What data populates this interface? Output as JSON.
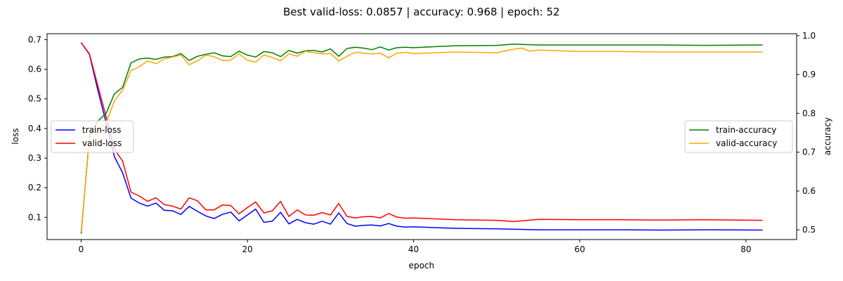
{
  "chart_data": {
    "type": "line",
    "title": "Best valid-loss: 0.0857 | accuracy: 0.968 | epoch: 52",
    "xlabel": "epoch",
    "ylabel_left": "loss",
    "ylabel_right": "accuracy",
    "xlim": [
      -4.1,
      86.1
    ],
    "ylim_left": [
      0.025,
      0.72
    ],
    "ylim_right": [
      0.475,
      1.005
    ],
    "xticks": [
      0,
      20,
      40,
      60,
      80
    ],
    "yticks_left": [
      0.1,
      0.2,
      0.3,
      0.4,
      0.5,
      0.6,
      0.7
    ],
    "yticks_right": [
      0.5,
      0.6,
      0.7,
      0.8,
      0.9,
      1.0
    ],
    "grid": false,
    "legend_left": "center-left",
    "legend_right": "center-right",
    "series": [
      {
        "name": "train-loss",
        "axis": "left",
        "color": "#0000ff",
        "x": [
          0,
          1,
          2,
          3,
          4,
          5,
          6,
          7,
          8,
          9,
          10,
          11,
          12,
          13,
          14,
          15,
          16,
          17,
          18,
          19,
          20,
          21,
          22,
          23,
          24,
          25,
          26,
          27,
          28,
          29,
          30,
          31,
          32,
          33,
          34,
          35,
          36,
          37,
          38,
          39,
          40,
          45,
          50,
          55,
          60,
          65,
          70,
          75,
          82
        ],
        "values": [
          0.69,
          0.65,
          0.53,
          0.42,
          0.305,
          0.25,
          0.165,
          0.148,
          0.138,
          0.148,
          0.124,
          0.122,
          0.11,
          0.137,
          0.12,
          0.105,
          0.096,
          0.11,
          0.118,
          0.088,
          0.108,
          0.128,
          0.083,
          0.087,
          0.117,
          0.078,
          0.093,
          0.082,
          0.077,
          0.087,
          0.077,
          0.115,
          0.079,
          0.07,
          0.073,
          0.074,
          0.071,
          0.079,
          0.07,
          0.067,
          0.068,
          0.063,
          0.061,
          0.058,
          0.058,
          0.058,
          0.057,
          0.058,
          0.057
        ]
      },
      {
        "name": "valid-loss",
        "axis": "left",
        "color": "#ff0000",
        "x": [
          0,
          1,
          2,
          3,
          4,
          5,
          6,
          7,
          8,
          9,
          10,
          11,
          12,
          13,
          14,
          15,
          16,
          17,
          18,
          19,
          20,
          21,
          22,
          23,
          24,
          25,
          26,
          27,
          28,
          29,
          30,
          31,
          32,
          33,
          34,
          35,
          36,
          37,
          38,
          39,
          40,
          45,
          50,
          52,
          55,
          60,
          65,
          70,
          75,
          82
        ],
        "values": [
          0.69,
          0.652,
          0.545,
          0.44,
          0.33,
          0.29,
          0.185,
          0.172,
          0.154,
          0.166,
          0.143,
          0.138,
          0.128,
          0.166,
          0.156,
          0.125,
          0.125,
          0.142,
          0.14,
          0.112,
          0.133,
          0.152,
          0.115,
          0.122,
          0.154,
          0.103,
          0.125,
          0.108,
          0.107,
          0.116,
          0.108,
          0.147,
          0.103,
          0.098,
          0.102,
          0.103,
          0.098,
          0.113,
          0.101,
          0.097,
          0.098,
          0.092,
          0.09,
          0.0857,
          0.093,
          0.092,
          0.092,
          0.091,
          0.092,
          0.09
        ]
      },
      {
        "name": "train-accuracy",
        "axis": "right",
        "color": "#008000",
        "x": [
          0,
          1,
          2,
          3,
          4,
          5,
          6,
          7,
          8,
          9,
          10,
          11,
          12,
          13,
          14,
          15,
          16,
          17,
          18,
          19,
          20,
          21,
          22,
          23,
          24,
          25,
          26,
          27,
          28,
          29,
          30,
          31,
          32,
          33,
          34,
          35,
          36,
          37,
          38,
          39,
          40,
          45,
          50,
          52,
          55,
          60,
          65,
          70,
          75,
          82
        ],
        "values": [
          0.49,
          0.74,
          0.78,
          0.8,
          0.85,
          0.867,
          0.93,
          0.94,
          0.942,
          0.939,
          0.945,
          0.946,
          0.954,
          0.936,
          0.947,
          0.952,
          0.956,
          0.948,
          0.946,
          0.96,
          0.95,
          0.945,
          0.959,
          0.956,
          0.946,
          0.962,
          0.955,
          0.961,
          0.962,
          0.958,
          0.966,
          0.947,
          0.967,
          0.97,
          0.968,
          0.964,
          0.971,
          0.963,
          0.969,
          0.97,
          0.969,
          0.974,
          0.975,
          0.978,
          0.976,
          0.976,
          0.976,
          0.976,
          0.975,
          0.976
        ]
      },
      {
        "name": "valid-accuracy",
        "axis": "right",
        "color": "#ffa500",
        "x": [
          0,
          1,
          2,
          3,
          4,
          5,
          6,
          7,
          8,
          9,
          10,
          11,
          12,
          13,
          14,
          15,
          16,
          17,
          18,
          19,
          20,
          21,
          22,
          23,
          24,
          25,
          26,
          27,
          28,
          29,
          30,
          31,
          32,
          33,
          34,
          35,
          36,
          37,
          38,
          39,
          40,
          45,
          50,
          52,
          53,
          54,
          55,
          60,
          65,
          70,
          75,
          82
        ],
        "values": [
          0.495,
          0.735,
          0.762,
          0.775,
          0.832,
          0.86,
          0.91,
          0.92,
          0.935,
          0.928,
          0.94,
          0.945,
          0.95,
          0.925,
          0.935,
          0.95,
          0.946,
          0.936,
          0.937,
          0.953,
          0.937,
          0.932,
          0.95,
          0.944,
          0.935,
          0.953,
          0.947,
          0.96,
          0.956,
          0.953,
          0.954,
          0.935,
          0.947,
          0.957,
          0.955,
          0.953,
          0.955,
          0.943,
          0.955,
          0.957,
          0.954,
          0.958,
          0.956,
          0.965,
          0.968,
          0.96,
          0.963,
          0.959,
          0.959,
          0.958,
          0.958,
          0.958
        ]
      }
    ]
  }
}
